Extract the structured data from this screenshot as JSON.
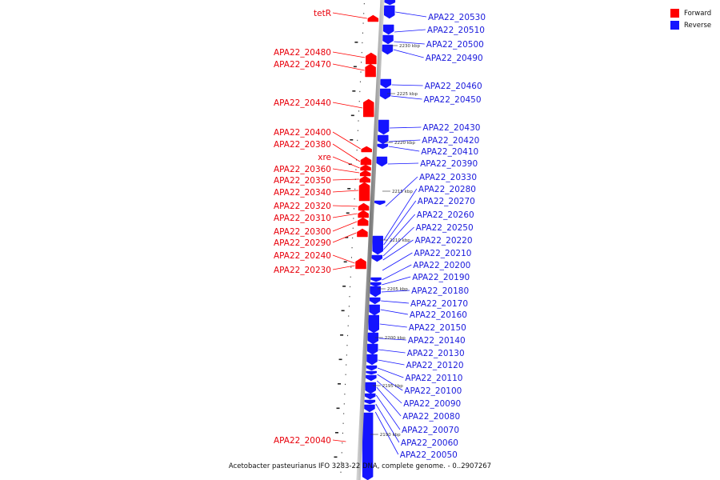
{
  "legend": {
    "forward": {
      "label": "Forward",
      "color": "#ff0000"
    },
    "reverse": {
      "label": "Reverse",
      "color": "#1414ff"
    }
  },
  "caption": "Acetobacter pasteurianus IFO 3283-22 DNA, complete genome. - 0..2907267",
  "ticks": [
    "2230 kbp",
    "2225 kbp",
    "2220 kbp",
    "2215 kbp",
    "2210 kbp",
    "2205 kbp",
    "2200 kbp",
    "2195 kbp",
    "2190 kbp"
  ],
  "forward_labels": [
    "tetR",
    "APA22_20480",
    "APA22_20470",
    "APA22_20440",
    "APA22_20400",
    "APA22_20380",
    "xre",
    "APA22_20360",
    "APA22_20350",
    "APA22_20340",
    "APA22_20320",
    "APA22_20310",
    "APA22_20300",
    "APA22_20290",
    "APA22_20240",
    "APA22_20230",
    "APA22_20040"
  ],
  "reverse_labels": [
    "APA22_20530",
    "APA22_20510",
    "APA22_20500",
    "APA22_20490",
    "APA22_20460",
    "APA22_20450",
    "APA22_20430",
    "APA22_20420",
    "APA22_20410",
    "APA22_20390",
    "APA22_20330",
    "APA22_20280",
    "APA22_20270",
    "APA22_20260",
    "APA22_20250",
    "APA22_20220",
    "APA22_20210",
    "APA22_20200",
    "APA22_20190",
    "APA22_20180",
    "APA22_20170",
    "APA22_20160",
    "APA22_20150",
    "APA22_20140",
    "APA22_20130",
    "APA22_20120",
    "APA22_20110",
    "APA22_20100",
    "APA22_20090",
    "APA22_20080",
    "APA22_20070",
    "APA22_20060",
    "APA22_20050"
  ]
}
